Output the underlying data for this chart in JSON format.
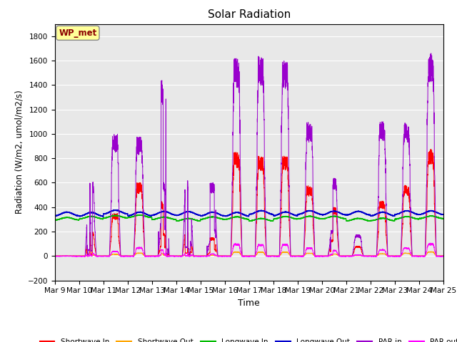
{
  "title": "Solar Radiation",
  "xlabel": "Time",
  "ylabel": "Radiation (W/m2, umol/m2/s)",
  "ylim": [
    -200,
    1900
  ],
  "yticks": [
    -200,
    0,
    200,
    400,
    600,
    800,
    1000,
    1200,
    1400,
    1600,
    1800
  ],
  "annotation_label": "WP_met",
  "annotation_box_color": "#FFFF99",
  "annotation_text_color": "#8B0000",
  "bg_color": "#E8E8E8",
  "series_colors": {
    "shortwave_in": "#FF0000",
    "shortwave_out": "#FFA500",
    "longwave_in": "#00BB00",
    "longwave_out": "#0000CC",
    "par_in": "#9900CC",
    "par_out": "#FF00FF"
  },
  "legend_labels": [
    "Shortwave In",
    "Shortwave Out",
    "Longwave In",
    "Longwave Out",
    "PAR in",
    "PAR out"
  ],
  "n_days": 16,
  "start_day": 9,
  "points_per_day": 288,
  "longwave_in_base": 310,
  "longwave_out_base": 350
}
